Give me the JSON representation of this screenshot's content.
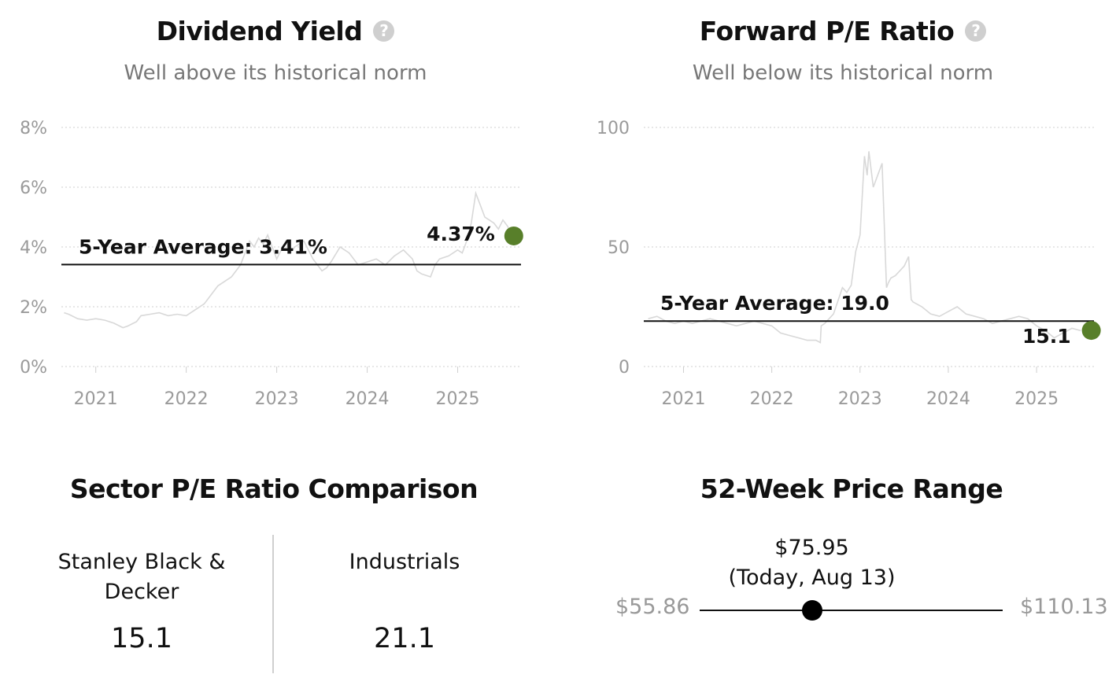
{
  "dividend_yield": {
    "title": "Dividend Yield",
    "subtitle": "Well above its historical norm",
    "help_icon": "question-circle-icon"
  },
  "forward_pe": {
    "title": "Forward P/E Ratio",
    "subtitle": "Well below its historical norm",
    "help_icon": "question-circle-icon"
  },
  "sector": {
    "title": "Sector P/E Ratio Comparison",
    "company_name": "Stanley Black & Decker",
    "company_value": "15.1",
    "sector_name": "Industrials",
    "sector_value": "21.1"
  },
  "price_range": {
    "title": "52-Week Price Range",
    "min_label": "$55.86",
    "max_label": "$110.13",
    "current_label": "$75.95",
    "current_date_label": "(Today, Aug 13)",
    "min": 55.86,
    "max": 110.13,
    "current": 75.95
  },
  "chart_data": [
    {
      "type": "line",
      "title": "Dividend Yield",
      "subtitle": "Well above its historical norm",
      "ylim": [
        0,
        8
      ],
      "yticks": [
        0,
        2,
        4,
        6,
        8
      ],
      "ytick_labels": [
        "0%",
        "2%",
        "4%",
        "6%",
        "8%"
      ],
      "xlim": [
        2020.62,
        2025.7
      ],
      "xticks": [
        2021,
        2022,
        2023,
        2024,
        2025
      ],
      "xtick_labels": [
        "2021",
        "2022",
        "2023",
        "2024",
        "2025"
      ],
      "average": 3.41,
      "average_label": "5-Year Average: 3.41%",
      "current": 4.37,
      "current_label": "4.37%",
      "current_x": 2025.62,
      "grid": true,
      "series": [
        {
          "x": [
            2020.65,
            2020.7,
            2020.8,
            2020.9,
            2021.0,
            2021.1,
            2021.2,
            2021.3,
            2021.35,
            2021.45,
            2021.5,
            2021.6,
            2021.7,
            2021.8,
            2021.9,
            2022.0,
            2022.1,
            2022.2,
            2022.3,
            2022.35,
            2022.45,
            2022.5,
            2022.6,
            2022.65,
            2022.7,
            2022.75,
            2022.8,
            2022.85,
            2022.9,
            2023.0,
            2023.05,
            2023.1,
            2023.15,
            2023.2,
            2023.3,
            2023.4,
            2023.5,
            2023.55,
            2023.6,
            2023.7,
            2023.8,
            2023.9,
            2024.0,
            2024.1,
            2024.2,
            2024.3,
            2024.4,
            2024.5,
            2024.55,
            2024.6,
            2024.7,
            2024.75,
            2024.8,
            2024.9,
            2025.0,
            2025.05,
            2025.1,
            2025.15,
            2025.2,
            2025.25,
            2025.3,
            2025.35,
            2025.4,
            2025.45,
            2025.5,
            2025.55,
            2025.6
          ],
          "y": [
            1.8,
            1.75,
            1.6,
            1.55,
            1.6,
            1.55,
            1.45,
            1.3,
            1.35,
            1.5,
            1.7,
            1.75,
            1.8,
            1.7,
            1.75,
            1.7,
            1.9,
            2.1,
            2.5,
            2.7,
            2.9,
            3.0,
            3.4,
            3.8,
            4.2,
            4.0,
            4.3,
            4.1,
            4.4,
            3.6,
            3.9,
            4.2,
            3.8,
            4.0,
            4.2,
            3.6,
            3.2,
            3.3,
            3.5,
            4.0,
            3.8,
            3.4,
            3.5,
            3.6,
            3.4,
            3.7,
            3.9,
            3.6,
            3.2,
            3.1,
            3.0,
            3.4,
            3.6,
            3.7,
            3.9,
            3.8,
            4.2,
            4.8,
            5.8,
            5.4,
            5.0,
            4.9,
            4.8,
            4.6,
            4.9,
            4.7,
            4.4
          ]
        }
      ]
    },
    {
      "type": "line",
      "title": "Forward P/E Ratio",
      "subtitle": "Well below its historical norm",
      "ylim": [
        0,
        100
      ],
      "yticks": [
        0,
        50,
        100
      ],
      "ytick_labels": [
        "0",
        "50",
        "100"
      ],
      "xlim": [
        2020.55,
        2025.65
      ],
      "xticks": [
        2021,
        2022,
        2023,
        2024,
        2025
      ],
      "xtick_labels": [
        "2021",
        "2022",
        "2023",
        "2024",
        "2025"
      ],
      "average": 19.0,
      "average_label": "5-Year Average: 19.0",
      "current": 15.1,
      "current_label": "15.1",
      "current_x": 2025.62,
      "grid": true,
      "series": [
        {
          "x": [
            2020.6,
            2020.7,
            2020.8,
            2020.9,
            2021.0,
            2021.1,
            2021.2,
            2021.3,
            2021.4,
            2021.5,
            2021.6,
            2021.7,
            2021.8,
            2021.9,
            2022.0,
            2022.1,
            2022.2,
            2022.3,
            2022.4,
            2022.5,
            2022.55,
            2022.56,
            2022.6,
            2022.7,
            2022.8,
            2022.85,
            2022.9,
            2022.95,
            2023.0,
            2023.05,
            2023.08,
            2023.1,
            2023.15,
            2023.2,
            2023.25,
            2023.3,
            2023.32,
            2023.35,
            2023.4,
            2023.5,
            2023.55,
            2023.58,
            2023.6,
            2023.7,
            2023.8,
            2023.9,
            2024.0,
            2024.1,
            2024.2,
            2024.3,
            2024.4,
            2024.5,
            2024.6,
            2024.7,
            2024.8,
            2024.9,
            2025.0,
            2025.1,
            2025.2,
            2025.3,
            2025.4,
            2025.5
          ],
          "y": [
            20,
            21,
            19,
            18,
            19,
            18,
            19,
            20,
            19,
            18,
            17,
            18,
            19,
            18,
            17,
            14,
            13,
            12,
            11,
            11,
            10,
            17,
            18,
            22,
            33,
            31,
            34,
            48,
            55,
            88,
            80,
            90,
            75,
            80,
            85,
            33,
            35,
            37,
            38,
            42,
            46,
            28,
            27,
            25,
            22,
            21,
            23,
            25,
            22,
            21,
            20,
            18,
            19,
            20,
            21,
            20,
            17,
            15,
            12,
            14,
            16,
            15
          ]
        }
      ]
    }
  ]
}
